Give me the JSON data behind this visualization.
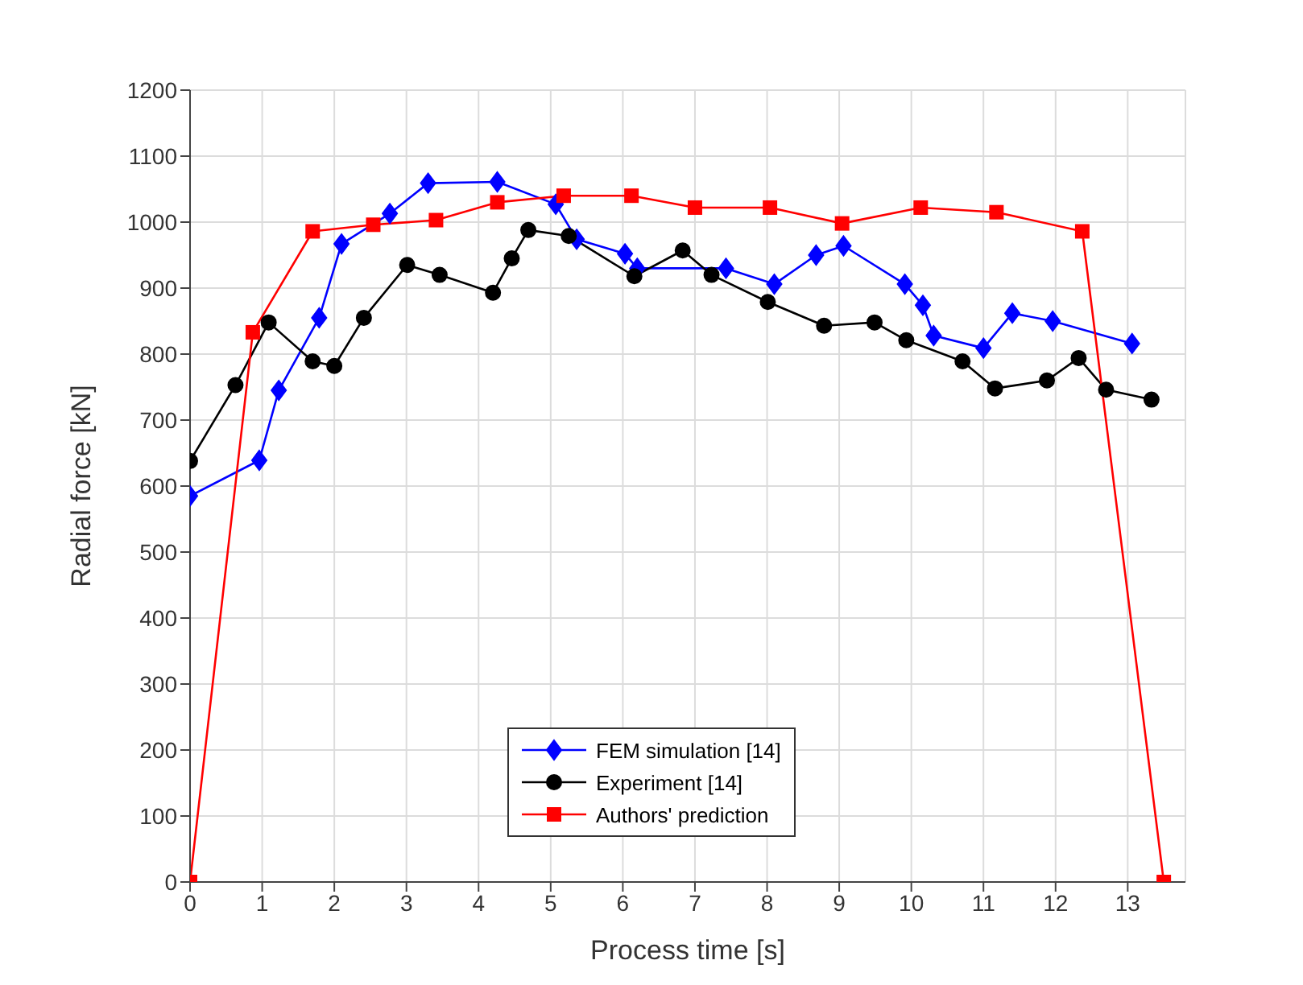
{
  "chart_data": {
    "type": "line",
    "xlabel": "Process time [s]",
    "ylabel": "Radial force [kN]",
    "xlim": [
      0,
      13.8
    ],
    "xticks": [
      0,
      1,
      2,
      3,
      4,
      5,
      6,
      7,
      8,
      9,
      10,
      11,
      12,
      13
    ],
    "ylim": [
      0,
      1200
    ],
    "yticks": [
      0,
      100,
      200,
      300,
      400,
      500,
      600,
      700,
      800,
      900,
      1000,
      1100,
      1200
    ],
    "grid": true,
    "legend": "bottom",
    "line_style": "solid",
    "series": [
      {
        "name": "FEM simulation [14]",
        "color": "#0000ff",
        "marker": "diamond",
        "x": [
          0,
          0.96,
          1.23,
          1.79,
          2.1,
          2.77,
          3.3,
          4.26,
          5.07,
          5.36,
          6.03,
          6.2,
          7.43,
          8.1,
          8.68,
          9.06,
          9.91,
          10.16,
          10.31,
          11.0,
          11.4,
          11.96,
          13.06
        ],
        "values": [
          585,
          639,
          745,
          855,
          967,
          1013,
          1059,
          1061,
          1027,
          974,
          952,
          930,
          930,
          906,
          950,
          964,
          906,
          874,
          828,
          809,
          862,
          850,
          816
        ]
      },
      {
        "name": "Experiment [14]",
        "color": "#000000",
        "marker": "circle",
        "x": [
          0,
          0.63,
          1.09,
          1.7,
          2.0,
          2.41,
          3.01,
          3.46,
          4.2,
          4.46,
          4.69,
          5.25,
          6.16,
          6.83,
          7.23,
          8.01,
          8.79,
          9.49,
          9.93,
          10.71,
          11.16,
          11.88,
          12.32,
          12.7,
          13.33
        ],
        "values": [
          638,
          753,
          848,
          789,
          782,
          855,
          935,
          920,
          893,
          945,
          988,
          979,
          918,
          957,
          920,
          879,
          843,
          848,
          821,
          789,
          748,
          760,
          794,
          746,
          731
        ]
      },
      {
        "name": "Authors' prediction",
        "color": "#ff0000",
        "marker": "square",
        "x": [
          0,
          0.87,
          1.7,
          2.54,
          3.41,
          4.26,
          5.18,
          6.12,
          7.0,
          8.04,
          9.04,
          10.13,
          11.18,
          12.37,
          13.5
        ],
        "values": [
          0,
          833,
          986,
          996,
          1003,
          1030,
          1040,
          1040,
          1022,
          1022,
          998,
          1022,
          1015,
          986,
          0
        ]
      }
    ]
  }
}
